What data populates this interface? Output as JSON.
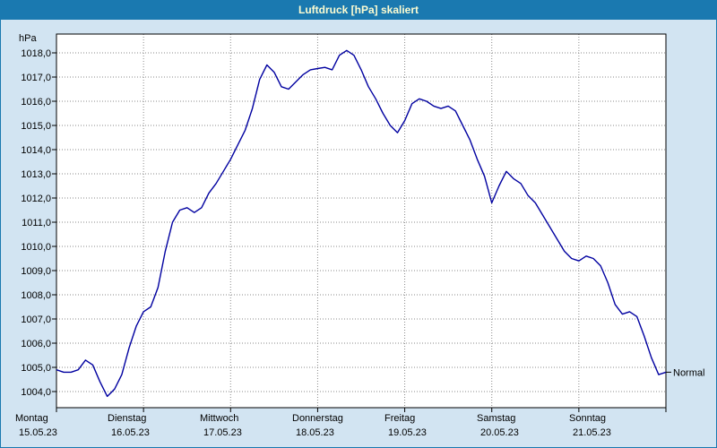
{
  "title_bar": {
    "title": "Luftdruck [hPa] skaliert"
  },
  "chart_data": {
    "type": "line",
    "title": "Luftdruck [hPa] skaliert",
    "ylabel": "hPa",
    "annotation": "Normal",
    "ylim": [
      1004,
      1018
    ],
    "ytick_labels": [
      "1004,0",
      "1005,0",
      "1006,0",
      "1007,0",
      "1008,0",
      "1009,0",
      "1010,0",
      "1011,0",
      "1012,0",
      "1013,0",
      "1014,0",
      "1015,0",
      "1016,0",
      "1017,0",
      "1018,0"
    ],
    "x_unit": "hours",
    "x_step_hours": 2,
    "x_range_hours": [
      0,
      168
    ],
    "grid": "dotted",
    "days": [
      {
        "name": "Montag",
        "date": "15.05.23"
      },
      {
        "name": "Dienstag",
        "date": "16.05.23"
      },
      {
        "name": "Mittwoch",
        "date": "17.05.23"
      },
      {
        "name": "Donnerstag",
        "date": "18.05.23"
      },
      {
        "name": "Freitag",
        "date": "19.05.23"
      },
      {
        "name": "Samstag",
        "date": "20.05.23"
      },
      {
        "name": "Sonntag",
        "date": "21.05.23"
      }
    ],
    "series": [
      {
        "name": "Luftdruck",
        "color": "#0000a0",
        "values": [
          1004.9,
          1004.8,
          1004.8,
          1004.9,
          1005.3,
          1005.1,
          1004.4,
          1003.8,
          1004.1,
          1004.7,
          1005.8,
          1006.7,
          1007.3,
          1007.5,
          1008.3,
          1009.8,
          1011.0,
          1011.5,
          1011.6,
          1011.4,
          1011.6,
          1012.2,
          1012.6,
          1013.1,
          1013.6,
          1014.2,
          1014.8,
          1015.7,
          1016.9,
          1017.5,
          1017.2,
          1016.6,
          1016.5,
          1016.8,
          1017.1,
          1017.3,
          1017.35,
          1017.4,
          1017.3,
          1017.9,
          1018.1,
          1017.9,
          1017.3,
          1016.6,
          1016.1,
          1015.5,
          1015.0,
          1014.7,
          1015.2,
          1015.9,
          1016.1,
          1016.0,
          1015.8,
          1015.7,
          1015.8,
          1015.6,
          1015.0,
          1014.4,
          1013.6,
          1012.9,
          1011.8,
          1012.5,
          1013.1,
          1012.8,
          1012.6,
          1012.1,
          1011.8,
          1011.3,
          1010.8,
          1010.3,
          1009.8,
          1009.5,
          1009.4,
          1009.6,
          1009.5,
          1009.2,
          1008.5,
          1007.6,
          1007.2,
          1007.3,
          1007.1,
          1006.3,
          1005.4,
          1004.7,
          1004.8
        ]
      }
    ]
  }
}
